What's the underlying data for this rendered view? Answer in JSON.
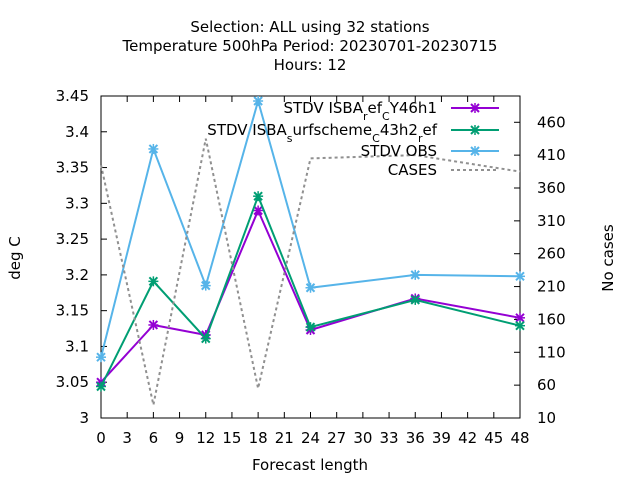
{
  "chart_data": {
    "type": "line",
    "title_lines": [
      "Selection: ALL using    32 stations",
      "Temperature 500hPa    Period: 20230701-20230715",
      "Hours:  12"
    ],
    "xlabel": "Forecast length",
    "ylabel": "deg C",
    "y2label": "No cases",
    "xlim": [
      0,
      48
    ],
    "ylim": [
      3.0,
      3.45
    ],
    "y2lim": [
      10,
      500
    ],
    "xticks": [
      0,
      3,
      6,
      9,
      12,
      15,
      18,
      21,
      24,
      27,
      30,
      33,
      36,
      39,
      42,
      45,
      48
    ],
    "yticks": [
      3,
      3.05,
      3.1,
      3.15,
      3.2,
      3.25,
      3.3,
      3.35,
      3.4,
      3.45
    ],
    "ytick_labels": [
      "3",
      "3.05",
      "3.1",
      "3.15",
      "3.2",
      "3.25",
      "3.3",
      "3.35",
      "3.4",
      "3.45"
    ],
    "y2ticks": [
      10,
      60,
      110,
      160,
      210,
      260,
      310,
      360,
      410,
      460
    ],
    "grid": false,
    "legend_position": "top-right",
    "series": [
      {
        "name": "STDV ISBA_ref_CY46h1",
        "legend_parts": [
          [
            "STDV ISBA",
            ""
          ],
          [
            "r",
            "sub"
          ],
          [
            "ef",
            ""
          ],
          [
            "C",
            "sub"
          ],
          [
            "Y46h1",
            ""
          ]
        ],
        "color": "#9400d3",
        "axis": "y1",
        "marker": "x",
        "dash": false,
        "x": [
          0,
          6,
          12,
          18,
          24,
          36,
          48
        ],
        "y": [
          3.05,
          3.13,
          3.116,
          3.29,
          3.123,
          3.167,
          3.14
        ]
      },
      {
        "name": "STDV ISBA_surfscheme_C43h2_ref",
        "legend_parts": [
          [
            "STDV ISBA",
            ""
          ],
          [
            "s",
            "sub"
          ],
          [
            "urfscheme",
            ""
          ],
          [
            "C",
            "sub"
          ],
          [
            "43h2",
            ""
          ],
          [
            "r",
            "sub"
          ],
          [
            "ef",
            ""
          ]
        ],
        "color": "#009e73",
        "axis": "y1",
        "marker": "x",
        "dash": false,
        "x": [
          0,
          6,
          12,
          18,
          24,
          36,
          48
        ],
        "y": [
          3.044,
          3.191,
          3.111,
          3.31,
          3.127,
          3.165,
          3.129
        ]
      },
      {
        "name": "STDV OBS",
        "legend_parts": [
          [
            "STDV OBS",
            ""
          ]
        ],
        "color": "#56b4e9",
        "axis": "y1",
        "marker": "x",
        "dash": false,
        "x": [
          0,
          6,
          12,
          18,
          24,
          36,
          48
        ],
        "y": [
          3.085,
          3.376,
          3.185,
          3.443,
          3.182,
          3.2,
          3.198
        ]
      },
      {
        "name": "CASES",
        "legend_parts": [
          [
            "CASES",
            ""
          ]
        ],
        "color": "#909090",
        "axis": "y2",
        "marker": "none",
        "dash": true,
        "x": [
          0,
          6,
          12,
          18,
          24,
          36,
          48
        ],
        "y": [
          395,
          30,
          435,
          55,
          405,
          410,
          385
        ]
      }
    ]
  }
}
